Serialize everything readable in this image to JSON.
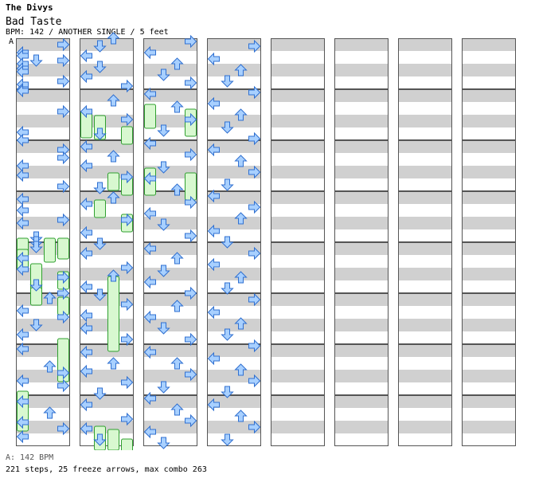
{
  "song": {
    "artist": "The Divys",
    "title": "Bad Taste",
    "meta": "BPM: 142 / ANOTHER SINGLE / 5 feet",
    "bpm_marker": "A",
    "bpm_list": "A: 142 BPM",
    "summary": "221 steps, 25 freeze arrows, max combo 263"
  },
  "colors": {
    "stripe": "#d0d0d0",
    "background": "#ffffff",
    "border": "#555555",
    "quarter_note": "#e04040",
    "quarter_fill": "#ffd8d8",
    "eighth_note": "#3070d0",
    "eighth_fill": "#a8d0ff",
    "freeze_outline": "#30a030",
    "freeze_fill": "#d8f8d0"
  },
  "chart_meta": {
    "columns": 8,
    "measures_per_column": 8,
    "rows_per_measure": 4,
    "lanes": [
      "left",
      "down",
      "up",
      "right"
    ],
    "icon_names": [
      "left-arrow-icon",
      "down-arrow-icon",
      "up-arrow-icon",
      "right-arrow-icon"
    ]
  },
  "notes": [
    [
      8,
      3,
      0,
      "q"
    ],
    [
      18,
      0,
      1,
      "q"
    ],
    [
      22,
      0,
      0,
      "q"
    ],
    [
      28,
      3,
      1,
      "q"
    ],
    [
      28,
      1,
      2,
      "q"
    ],
    [
      32,
      0,
      0,
      "q"
    ],
    [
      38,
      0,
      1,
      "q"
    ],
    [
      42,
      0,
      0,
      "q"
    ],
    [
      54,
      3,
      1,
      "q"
    ],
    [
      58,
      0,
      0,
      "q"
    ],
    [
      64,
      0,
      0,
      "q"
    ],
    [
      66,
      0,
      1,
      "q"
    ],
    [
      92,
      3,
      0,
      "q"
    ],
    [
      118,
      0,
      1,
      "q"
    ],
    [
      128,
      0,
      0,
      "q"
    ],
    [
      140,
      3,
      1,
      "q"
    ],
    [
      150,
      3,
      0,
      "q"
    ],
    [
      160,
      0,
      0,
      "q"
    ],
    [
      172,
      0,
      1,
      "q"
    ],
    [
      186,
      3,
      0,
      "q"
    ],
    [
      202,
      0,
      1,
      "q"
    ],
    [
      216,
      0,
      0,
      "q"
    ],
    [
      228,
      3,
      1,
      "q"
    ],
    [
      232,
      0,
      0,
      "q"
    ],
    [
      250,
      1,
      2,
      "q"
    ],
    [
      256,
      1,
      0,
      "q"
    ],
    [
      262,
      1,
      1,
      "q"
    ],
    [
      276,
      0,
      1,
      "q"
    ],
    [
      290,
      0,
      0,
      "q"
    ],
    [
      300,
      3,
      1,
      "q"
    ],
    [
      310,
      1,
      0,
      "q"
    ],
    [
      320,
      3,
      2,
      "q"
    ],
    [
      326,
      2,
      1,
      "q"
    ],
    [
      342,
      0,
      2,
      "q"
    ],
    [
      350,
      3,
      0,
      "q"
    ],
    [
      360,
      1,
      1,
      "q"
    ],
    [
      372,
      0,
      0,
      "q"
    ],
    [
      390,
      0,
      2,
      "q"
    ],
    [
      412,
      2,
      1,
      "q"
    ],
    [
      420,
      3,
      0,
      "q"
    ],
    [
      430,
      0,
      1,
      "q"
    ],
    [
      436,
      3,
      2,
      "q"
    ],
    [
      456,
      0,
      0,
      "q"
    ],
    [
      470,
      2,
      1,
      "q"
    ],
    [
      482,
      0,
      2,
      "q"
    ],
    [
      490,
      3,
      0,
      "q"
    ],
    [
      500,
      0,
      1,
      "q"
    ],
    [
      512,
      2,
      2,
      "q"
    ],
    [
      522,
      1,
      0,
      "q"
    ],
    [
      534,
      0,
      1,
      "q"
    ],
    [
      548,
      1,
      2,
      "q"
    ],
    [
      560,
      0,
      1,
      "q"
    ],
    [
      572,
      3,
      0,
      "q"
    ],
    [
      590,
      2,
      1,
      "q"
    ],
    [
      604,
      0,
      0,
      "q"
    ],
    [
      614,
      3,
      2,
      "q"
    ],
    [
      632,
      1,
      1,
      "q"
    ],
    [
      648,
      0,
      0,
      "q"
    ],
    [
      660,
      2,
      2,
      "q"
    ],
    [
      672,
      0,
      1,
      "q"
    ],
    [
      686,
      3,
      0,
      "q"
    ],
    [
      700,
      1,
      1,
      "q"
    ],
    [
      712,
      2,
      0,
      "q"
    ],
    [
      720,
      0,
      2,
      "q"
    ],
    [
      740,
      3,
      1,
      "q"
    ],
    [
      756,
      0,
      0,
      "q"
    ],
    [
      770,
      1,
      1,
      "q"
    ],
    [
      782,
      0,
      2,
      "q"
    ],
    [
      800,
      3,
      0,
      "q"
    ],
    [
      810,
      2,
      1,
      "q"
    ],
    [
      824,
      0,
      0,
      "q"
    ],
    [
      834,
      1,
      2,
      "q"
    ],
    [
      846,
      3,
      0,
      "q"
    ],
    [
      860,
      0,
      1,
      "q"
    ],
    [
      876,
      0,
      0,
      "q"
    ],
    [
      890,
      3,
      1,
      "q"
    ],
    [
      906,
      0,
      2,
      "q"
    ],
    [
      920,
      2,
      1,
      "q"
    ],
    [
      930,
      0,
      0,
      "q"
    ],
    [
      944,
      3,
      2,
      "q"
    ],
    [
      958,
      1,
      0,
      "q"
    ],
    [
      972,
      0,
      1,
      "q"
    ],
    [
      990,
      3,
      0,
      "q"
    ],
    [
      1002,
      0,
      1,
      "q"
    ],
    [
      1016,
      1,
      0,
      "q"
    ],
    [
      1028,
      3,
      2,
      "q"
    ],
    [
      1042,
      0,
      1,
      "q"
    ],
    [
      1056,
      2,
      0,
      "q"
    ],
    [
      1070,
      1,
      1,
      "q"
    ],
    [
      1080,
      3,
      2,
      "q"
    ],
    [
      1094,
      0,
      0,
      "q"
    ],
    [
      1110,
      2,
      1,
      "q"
    ],
    [
      1126,
      3,
      0,
      "q"
    ],
    [
      1140,
      1,
      2,
      "q"
    ],
    [
      1156,
      0,
      1,
      "q"
    ],
    [
      1170,
      3,
      0,
      "q"
    ],
    [
      1186,
      1,
      1,
      "q"
    ],
    [
      1200,
      0,
      2,
      "q"
    ],
    [
      1214,
      2,
      0,
      "q"
    ],
    [
      1230,
      3,
      1,
      "q"
    ],
    [
      1244,
      0,
      0,
      "q"
    ],
    [
      1258,
      1,
      1,
      "q"
    ],
    [
      1272,
      3,
      2,
      "q"
    ],
    [
      1288,
      0,
      0,
      "q"
    ],
    [
      1300,
      2,
      1,
      "q"
    ],
    [
      1316,
      1,
      0,
      "q"
    ],
    [
      1330,
      0,
      1,
      "q"
    ],
    [
      1344,
      3,
      2,
      "q"
    ],
    [
      1360,
      2,
      0,
      "q"
    ],
    [
      1374,
      0,
      1,
      "q"
    ],
    [
      1388,
      1,
      0,
      "q"
    ],
    [
      1402,
      3,
      1,
      "q"
    ],
    [
      1418,
      0,
      2,
      "q"
    ],
    [
      1432,
      2,
      0,
      "q"
    ],
    [
      1446,
      3,
      1,
      "q"
    ],
    [
      1462,
      1,
      0,
      "q"
    ],
    [
      1476,
      0,
      1,
      "q"
    ],
    [
      1490,
      2,
      2,
      "q"
    ],
    [
      1504,
      3,
      0,
      "q"
    ],
    [
      1518,
      0,
      1,
      "q"
    ],
    [
      1532,
      1,
      0,
      "q"
    ],
    [
      1546,
      3,
      2,
      "q"
    ],
    [
      1562,
      0,
      1,
      "q"
    ],
    [
      1576,
      2,
      0,
      "q"
    ],
    [
      1590,
      1,
      1,
      "q"
    ],
    [
      1604,
      3,
      0,
      "q"
    ],
    [
      1618,
      0,
      1,
      "q"
    ],
    [
      1632,
      2,
      2,
      "q"
    ],
    [
      1648,
      1,
      0,
      "q"
    ],
    [
      1662,
      3,
      1,
      "q"
    ],
    [
      1676,
      0,
      0,
      "q"
    ],
    [
      1690,
      2,
      1,
      "q"
    ],
    [
      1704,
      3,
      2,
      "q"
    ],
    [
      1720,
      1,
      0,
      "q"
    ],
    [
      1734,
      0,
      1,
      "q"
    ],
    [
      1748,
      3,
      0,
      "q"
    ],
    [
      1762,
      2,
      1,
      "q"
    ],
    [
      1778,
      0,
      2,
      "q"
    ],
    [
      1792,
      1,
      0,
      "q"
    ],
    [
      1806,
      3,
      1,
      "q"
    ],
    [
      1820,
      0,
      0,
      "q"
    ],
    [
      1836,
      2,
      1,
      "q"
    ],
    [
      1850,
      1,
      2,
      "q"
    ],
    [
      1864,
      3,
      0,
      "q"
    ],
    [
      1880,
      0,
      1,
      "q"
    ],
    [
      1894,
      2,
      0,
      "q"
    ],
    [
      1908,
      1,
      1,
      "q"
    ],
    [
      1922,
      3,
      2,
      "q"
    ],
    [
      1938,
      0,
      0,
      "q"
    ],
    [
      1952,
      2,
      1,
      "q"
    ],
    [
      1966,
      3,
      0,
      "q"
    ],
    [
      1980,
      1,
      1,
      "q"
    ],
    [
      1996,
      0,
      2,
      "q"
    ],
    [
      2010,
      2,
      0,
      "q"
    ],
    [
      2024,
      3,
      1,
      "q"
    ],
    [
      2040,
      1,
      0,
      "q"
    ]
  ],
  "freezes": [
    [
      258,
      0,
      6
    ],
    [
      258,
      3,
      6
    ],
    [
      272,
      0,
      6
    ],
    [
      290,
      1,
      10
    ],
    [
      300,
      3,
      4
    ],
    [
      320,
      1,
      4
    ],
    [
      332,
      3,
      4
    ],
    [
      384,
      3,
      20
    ],
    [
      450,
      0,
      18
    ],
    [
      610,
      0,
      10
    ],
    [
      616,
      1,
      8
    ],
    [
      630,
      3,
      4
    ],
    [
      688,
      2,
      4
    ],
    [
      694,
      3,
      4
    ],
    [
      722,
      1,
      4
    ],
    [
      740,
      3,
      4
    ],
    [
      818,
      2,
      40
    ],
    [
      258,
      2,
      8
    ],
    [
      1006,
      1,
      8
    ],
    [
      1010,
      2,
      6
    ],
    [
      1022,
      3,
      10
    ],
    [
      1114,
      0,
      8
    ],
    [
      1120,
      3,
      10
    ],
    [
      1194,
      0,
      10
    ],
    [
      1200,
      3,
      10
    ]
  ]
}
